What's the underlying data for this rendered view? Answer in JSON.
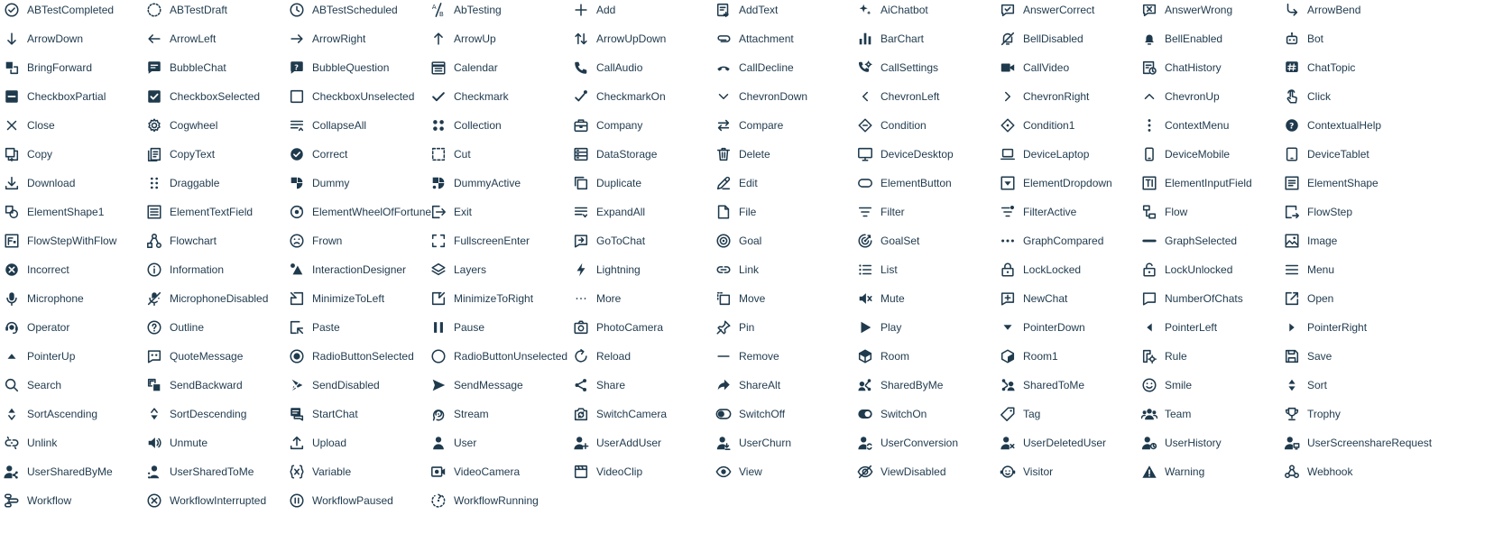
{
  "palette": {
    "text": "#1f3a4d",
    "background": "#ffffff"
  },
  "icons": [
    {
      "label": "ABTestCompleted",
      "icon": "ab-test-completed-icon"
    },
    {
      "label": "ABTestDraft",
      "icon": "ab-test-draft-icon"
    },
    {
      "label": "ABTestScheduled",
      "icon": "ab-test-scheduled-icon"
    },
    {
      "label": "AbTesting",
      "icon": "ab-testing-icon"
    },
    {
      "label": "Add",
      "icon": "add-icon"
    },
    {
      "label": "AddText",
      "icon": "add-text-icon"
    },
    {
      "label": "AiChatbot",
      "icon": "ai-chatbot-icon"
    },
    {
      "label": "AnswerCorrect",
      "icon": "answer-correct-icon"
    },
    {
      "label": "AnswerWrong",
      "icon": "answer-wrong-icon"
    },
    {
      "label": "ArrowBend",
      "icon": "arrow-bend-icon"
    },
    {
      "label": "ArrowDown",
      "icon": "arrow-down-icon"
    },
    {
      "label": "ArrowLeft",
      "icon": "arrow-left-icon"
    },
    {
      "label": "ArrowRight",
      "icon": "arrow-right-icon"
    },
    {
      "label": "ArrowUp",
      "icon": "arrow-up-icon"
    },
    {
      "label": "ArrowUpDown",
      "icon": "arrow-up-down-icon"
    },
    {
      "label": "Attachment",
      "icon": "attachment-icon"
    },
    {
      "label": "BarChart",
      "icon": "bar-chart-icon"
    },
    {
      "label": "BellDisabled",
      "icon": "bell-disabled-icon"
    },
    {
      "label": "BellEnabled",
      "icon": "bell-enabled-icon"
    },
    {
      "label": "Bot",
      "icon": "bot-icon"
    },
    {
      "label": "BringForward",
      "icon": "bring-forward-icon"
    },
    {
      "label": "BubbleChat",
      "icon": "bubble-chat-icon"
    },
    {
      "label": "BubbleQuestion",
      "icon": "bubble-question-icon"
    },
    {
      "label": "Calendar",
      "icon": "calendar-icon"
    },
    {
      "label": "CallAudio",
      "icon": "call-audio-icon"
    },
    {
      "label": "CallDecline",
      "icon": "call-decline-icon"
    },
    {
      "label": "CallSettings",
      "icon": "call-settings-icon"
    },
    {
      "label": "CallVideo",
      "icon": "call-video-icon"
    },
    {
      "label": "ChatHistory",
      "icon": "chat-history-icon"
    },
    {
      "label": "ChatTopic",
      "icon": "chat-topic-icon"
    },
    {
      "label": "CheckboxPartial",
      "icon": "checkbox-partial-icon"
    },
    {
      "label": "CheckboxSelected",
      "icon": "checkbox-selected-icon"
    },
    {
      "label": "CheckboxUnselected",
      "icon": "checkbox-unselected-icon"
    },
    {
      "label": "Checkmark",
      "icon": "checkmark-icon"
    },
    {
      "label": "CheckmarkOn",
      "icon": "checkmark-on-icon"
    },
    {
      "label": "ChevronDown",
      "icon": "chevron-down-icon"
    },
    {
      "label": "ChevronLeft",
      "icon": "chevron-left-icon"
    },
    {
      "label": "ChevronRight",
      "icon": "chevron-right-icon"
    },
    {
      "label": "ChevronUp",
      "icon": "chevron-up-icon"
    },
    {
      "label": "Click",
      "icon": "click-icon"
    },
    {
      "label": "Close",
      "icon": "close-icon"
    },
    {
      "label": "Cogwheel",
      "icon": "cogwheel-icon"
    },
    {
      "label": "CollapseAll",
      "icon": "collapse-all-icon"
    },
    {
      "label": "Collection",
      "icon": "collection-icon"
    },
    {
      "label": "Company",
      "icon": "company-icon"
    },
    {
      "label": "Compare",
      "icon": "compare-icon"
    },
    {
      "label": "Condition",
      "icon": "condition-icon"
    },
    {
      "label": "Condition1",
      "icon": "condition1-icon"
    },
    {
      "label": "ContextMenu",
      "icon": "context-menu-icon"
    },
    {
      "label": "ContextualHelp",
      "icon": "contextual-help-icon"
    },
    {
      "label": "Copy",
      "icon": "copy-icon"
    },
    {
      "label": "CopyText",
      "icon": "copy-text-icon"
    },
    {
      "label": "Correct",
      "icon": "correct-icon"
    },
    {
      "label": "Cut",
      "icon": "cut-icon"
    },
    {
      "label": "DataStorage",
      "icon": "data-storage-icon"
    },
    {
      "label": "Delete",
      "icon": "delete-icon"
    },
    {
      "label": "DeviceDesktop",
      "icon": "device-desktop-icon"
    },
    {
      "label": "DeviceLaptop",
      "icon": "device-laptop-icon"
    },
    {
      "label": "DeviceMobile",
      "icon": "device-mobile-icon"
    },
    {
      "label": "DeviceTablet",
      "icon": "device-tablet-icon"
    },
    {
      "label": "Download",
      "icon": "download-icon"
    },
    {
      "label": "Draggable",
      "icon": "draggable-icon"
    },
    {
      "label": "Dummy",
      "icon": "dummy-icon"
    },
    {
      "label": "DummyActive",
      "icon": "dummy-active-icon"
    },
    {
      "label": "Duplicate",
      "icon": "duplicate-icon"
    },
    {
      "label": "Edit",
      "icon": "edit-icon"
    },
    {
      "label": "ElementButton",
      "icon": "element-button-icon"
    },
    {
      "label": "ElementDropdown",
      "icon": "element-dropdown-icon"
    },
    {
      "label": "ElementInputField",
      "icon": "element-input-field-icon"
    },
    {
      "label": "ElementShape",
      "icon": "element-shape-icon"
    },
    {
      "label": "ElementShape1",
      "icon": "element-shape1-icon"
    },
    {
      "label": "ElementTextField",
      "icon": "element-text-field-icon"
    },
    {
      "label": "ElementWheelOfFortune",
      "icon": "element-wheel-of-fortune-icon"
    },
    {
      "label": "Exit",
      "icon": "exit-icon"
    },
    {
      "label": "ExpandAll",
      "icon": "expand-all-icon"
    },
    {
      "label": "File",
      "icon": "file-icon"
    },
    {
      "label": "Filter",
      "icon": "filter-icon"
    },
    {
      "label": "FilterActive",
      "icon": "filter-active-icon"
    },
    {
      "label": "Flow",
      "icon": "flow-icon"
    },
    {
      "label": "FlowStep",
      "icon": "flow-step-icon"
    },
    {
      "label": "FlowStepWithFlow",
      "icon": "flow-step-with-flow-icon"
    },
    {
      "label": "Flowchart",
      "icon": "flowchart-icon"
    },
    {
      "label": "Frown",
      "icon": "frown-icon"
    },
    {
      "label": "FullscreenEnter",
      "icon": "fullscreen-enter-icon"
    },
    {
      "label": "GoToChat",
      "icon": "go-to-chat-icon"
    },
    {
      "label": "Goal",
      "icon": "goal-icon"
    },
    {
      "label": "GoalSet",
      "icon": "goal-set-icon"
    },
    {
      "label": "GraphCompared",
      "icon": "graph-compared-icon"
    },
    {
      "label": "GraphSelected",
      "icon": "graph-selected-icon"
    },
    {
      "label": "Image",
      "icon": "image-icon"
    },
    {
      "label": "Incorrect",
      "icon": "incorrect-icon"
    },
    {
      "label": "Information",
      "icon": "information-icon"
    },
    {
      "label": "InteractionDesigner",
      "icon": "interaction-designer-icon"
    },
    {
      "label": "Layers",
      "icon": "layers-icon"
    },
    {
      "label": "Lightning",
      "icon": "lightning-icon"
    },
    {
      "label": "Link",
      "icon": "link-icon"
    },
    {
      "label": "List",
      "icon": "list-icon"
    },
    {
      "label": "LockLocked",
      "icon": "lock-locked-icon"
    },
    {
      "label": "LockUnlocked",
      "icon": "lock-unlocked-icon"
    },
    {
      "label": "Menu",
      "icon": "menu-icon"
    },
    {
      "label": "Microphone",
      "icon": "microphone-icon"
    },
    {
      "label": "MicrophoneDisabled",
      "icon": "microphone-disabled-icon"
    },
    {
      "label": "MinimizeToLeft",
      "icon": "minimize-to-left-icon"
    },
    {
      "label": "MinimizeToRight",
      "icon": "minimize-to-right-icon"
    },
    {
      "label": "More",
      "icon": "more-icon"
    },
    {
      "label": "Move",
      "icon": "move-icon"
    },
    {
      "label": "Mute",
      "icon": "mute-icon"
    },
    {
      "label": "NewChat",
      "icon": "new-chat-icon"
    },
    {
      "label": "NumberOfChats",
      "icon": "number-of-chats-icon"
    },
    {
      "label": "Open",
      "icon": "open-icon"
    },
    {
      "label": "Operator",
      "icon": "operator-icon"
    },
    {
      "label": "Outline",
      "icon": "outline-icon"
    },
    {
      "label": "Paste",
      "icon": "paste-icon"
    },
    {
      "label": "Pause",
      "icon": "pause-icon"
    },
    {
      "label": "PhotoCamera",
      "icon": "photo-camera-icon"
    },
    {
      "label": "Pin",
      "icon": "pin-icon"
    },
    {
      "label": "Play",
      "icon": "play-icon"
    },
    {
      "label": "PointerDown",
      "icon": "pointer-down-icon"
    },
    {
      "label": "PointerLeft",
      "icon": "pointer-left-icon"
    },
    {
      "label": "PointerRight",
      "icon": "pointer-right-icon"
    },
    {
      "label": "PointerUp",
      "icon": "pointer-up-icon"
    },
    {
      "label": "QuoteMessage",
      "icon": "quote-message-icon"
    },
    {
      "label": "RadioButtonSelected",
      "icon": "radio-button-selected-icon"
    },
    {
      "label": "RadioButtonUnselected",
      "icon": "radio-button-unselected-icon"
    },
    {
      "label": "Reload",
      "icon": "reload-icon"
    },
    {
      "label": "Remove",
      "icon": "remove-icon"
    },
    {
      "label": "Room",
      "icon": "room-icon"
    },
    {
      "label": "Room1",
      "icon": "room1-icon"
    },
    {
      "label": "Rule",
      "icon": "rule-icon"
    },
    {
      "label": "Save",
      "icon": "save-icon"
    },
    {
      "label": "Search",
      "icon": "search-icon"
    },
    {
      "label": "SendBackward",
      "icon": "send-backward-icon"
    },
    {
      "label": "SendDisabled",
      "icon": "send-disabled-icon"
    },
    {
      "label": "SendMessage",
      "icon": "send-message-icon"
    },
    {
      "label": "Share",
      "icon": "share-icon"
    },
    {
      "label": "ShareAlt",
      "icon": "share-alt-icon"
    },
    {
      "label": "SharedByMe",
      "icon": "shared-by-me-icon"
    },
    {
      "label": "SharedToMe",
      "icon": "shared-to-me-icon"
    },
    {
      "label": "Smile",
      "icon": "smile-icon"
    },
    {
      "label": "Sort",
      "icon": "sort-icon"
    },
    {
      "label": "SortAscending",
      "icon": "sort-ascending-icon"
    },
    {
      "label": "SortDescending",
      "icon": "sort-descending-icon"
    },
    {
      "label": "StartChat",
      "icon": "start-chat-icon"
    },
    {
      "label": "Stream",
      "icon": "stream-icon"
    },
    {
      "label": "SwitchCamera",
      "icon": "switch-camera-icon"
    },
    {
      "label": "SwitchOff",
      "icon": "switch-off-icon"
    },
    {
      "label": "SwitchOn",
      "icon": "switch-on-icon"
    },
    {
      "label": "Tag",
      "icon": "tag-icon"
    },
    {
      "label": "Team",
      "icon": "team-icon"
    },
    {
      "label": "Trophy",
      "icon": "trophy-icon"
    },
    {
      "label": "Unlink",
      "icon": "unlink-icon"
    },
    {
      "label": "Unmute",
      "icon": "unmute-icon"
    },
    {
      "label": "Upload",
      "icon": "upload-icon"
    },
    {
      "label": "User",
      "icon": "user-icon"
    },
    {
      "label": "UserAddUser",
      "icon": "user-add-user-icon"
    },
    {
      "label": "UserChurn",
      "icon": "user-churn-icon"
    },
    {
      "label": "UserConversion",
      "icon": "user-conversion-icon"
    },
    {
      "label": "UserDeletedUser",
      "icon": "user-deleted-user-icon"
    },
    {
      "label": "UserHistory",
      "icon": "user-history-icon"
    },
    {
      "label": "UserScreenshareRequest",
      "icon": "user-screenshare-request-icon"
    },
    {
      "label": "UserSharedByMe",
      "icon": "user-shared-by-me-icon"
    },
    {
      "label": "UserSharedToMe",
      "icon": "user-shared-to-me-icon"
    },
    {
      "label": "Variable",
      "icon": "variable-icon"
    },
    {
      "label": "VideoCamera",
      "icon": "video-camera-icon"
    },
    {
      "label": "VideoClip",
      "icon": "video-clip-icon"
    },
    {
      "label": "View",
      "icon": "view-icon"
    },
    {
      "label": "ViewDisabled",
      "icon": "view-disabled-icon"
    },
    {
      "label": "Visitor",
      "icon": "visitor-icon"
    },
    {
      "label": "Warning",
      "icon": "warning-icon"
    },
    {
      "label": "Webhook",
      "icon": "webhook-icon"
    },
    {
      "label": "Workflow",
      "icon": "workflow-icon"
    },
    {
      "label": "WorkflowInterrupted",
      "icon": "workflow-interrupted-icon"
    },
    {
      "label": "WorkflowPaused",
      "icon": "workflow-paused-icon"
    },
    {
      "label": "WorkflowRunning",
      "icon": "workflow-running-icon"
    }
  ]
}
